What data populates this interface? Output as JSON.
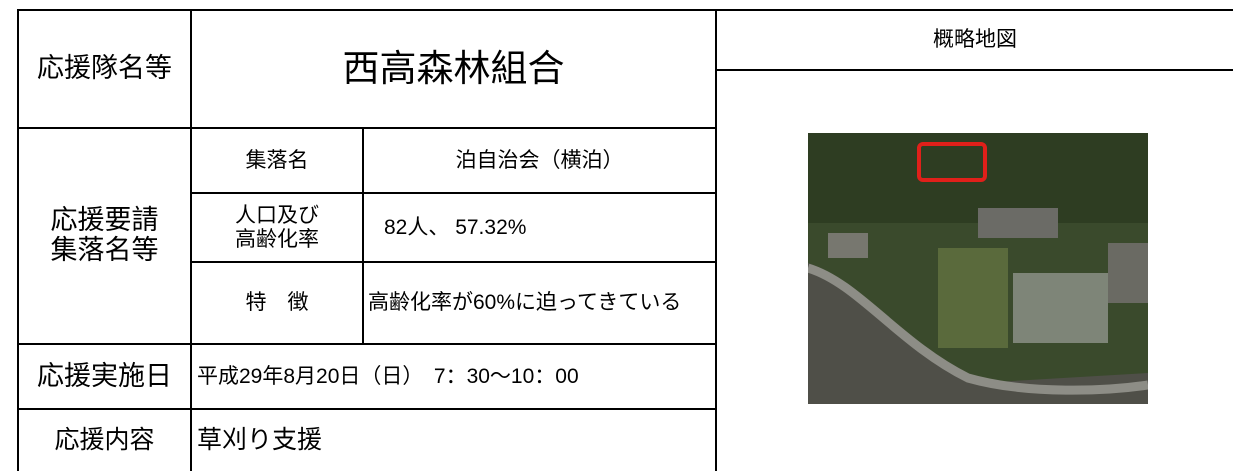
{
  "table": {
    "team_label": "応援隊名等",
    "team_name": "西高森林組合",
    "village_group_label": "応援要請\n集落名等",
    "village_name_label": "集落名",
    "village_name": "泊自治会（横泊）",
    "population_label": "人口及び\n高齢化率",
    "population": "82人、 57.32%",
    "feature_label": "特　徴",
    "feature": "高齢化率が60%に迫ってきている",
    "date_label": "応援実施日",
    "date": "平成29年8月20日（日）　7：30〜10：00",
    "content_label": "応援内容",
    "content": "草刈り支援"
  },
  "map": {
    "title": "概略地図"
  }
}
